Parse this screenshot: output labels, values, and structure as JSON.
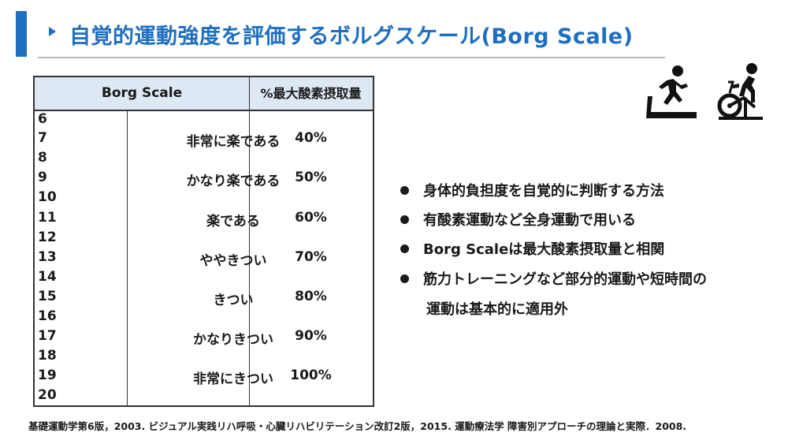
{
  "title": "自覚的運動強度を評価するボルグスケール(Borg Scale)",
  "table": {
    "header_scale": "Borg Scale",
    "header_pct": "%最大酸素摂取量",
    "numbers": [
      "6",
      "7",
      "8",
      "9",
      "10",
      "11",
      "12",
      "13",
      "14",
      "15",
      "16",
      "17",
      "18",
      "19",
      "20"
    ],
    "rows": [
      {
        "desc": "非常に楽である",
        "pct": "40%"
      },
      {
        "desc": "かなり楽である",
        "pct": "50%"
      },
      {
        "desc": "楽である",
        "pct": "60%"
      },
      {
        "desc": "ややきつい",
        "pct": "70%"
      },
      {
        "desc": "きつい",
        "pct": "80%"
      },
      {
        "desc": "かなりきつい",
        "pct": "90%"
      },
      {
        "desc": "非常にきつい",
        "pct": "100%"
      }
    ]
  },
  "icons": [
    "treadmill-icon",
    "exercise-bike-icon"
  ],
  "bullets": [
    "身体的負担度を自覚的に判断する方法",
    "有酸素運動など全身運動で用いる",
    "Borg Scaleは最大酸素摂取量と相関",
    "筋力トレーニングなど部分的運動や短時間の"
  ],
  "bullet_continuation": "運動は基本的に適用外",
  "footer": "基礎運動学第6版，2003.  ビジュアル実践リハ呼吸・心臓リハビリテーション改訂2版，2015.  運動療法学 障害別アプローチの理論と実際．2008.",
  "colors": {
    "accent": "#1f6fc0",
    "header_bg": "#dde8f4"
  }
}
